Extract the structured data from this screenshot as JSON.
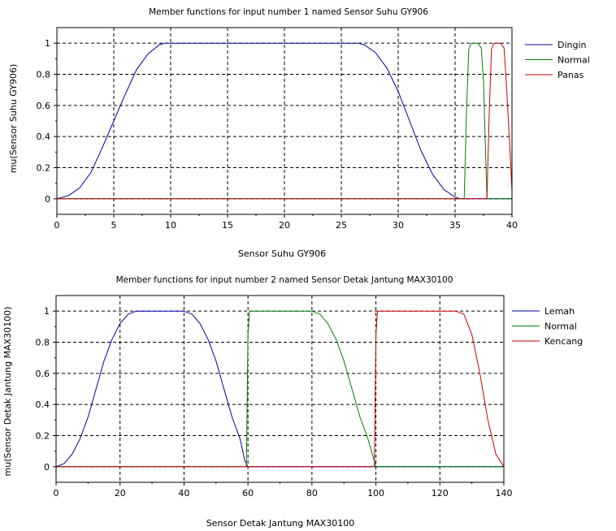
{
  "chart_data": [
    {
      "type": "line",
      "title": "Member functions for input number 1 named Sensor Suhu GY906",
      "xlabel": "Sensor Suhu GY906",
      "ylabel": "mu(Sensor Suhu GY906)",
      "xlim": [
        0,
        40
      ],
      "ylim": [
        -0.1,
        1.1
      ],
      "xticks": [
        0,
        5,
        10,
        15,
        20,
        25,
        30,
        35,
        40
      ],
      "yticks": [
        0,
        0.2,
        0.4,
        0.6,
        0.8,
        1
      ],
      "xtick_labels": [
        "0",
        "5",
        "10",
        "15",
        "20",
        "25",
        "30",
        "35",
        "40"
      ],
      "ytick_labels": [
        "0",
        "0.2",
        "0.4",
        "0.6",
        "0.8",
        "1"
      ],
      "grid": true,
      "legend_position": "right",
      "series": [
        {
          "name": "Dingin",
          "color": "#0000aa",
          "x": [
            0,
            1,
            2,
            3,
            4,
            5,
            6,
            7,
            8,
            9,
            9.5,
            10,
            26,
            26.5,
            27,
            28,
            29,
            30,
            31,
            32,
            33,
            34,
            35,
            35.5,
            36,
            40
          ],
          "y": [
            0,
            0.02,
            0.07,
            0.17,
            0.33,
            0.5,
            0.67,
            0.83,
            0.93,
            0.99,
            1,
            1,
            1,
            1,
            0.99,
            0.94,
            0.84,
            0.69,
            0.5,
            0.31,
            0.16,
            0.06,
            0.01,
            0,
            0,
            0
          ]
        },
        {
          "name": "Normal",
          "color": "#008000",
          "x": [
            0,
            35.8,
            36,
            36.2,
            36.4,
            37,
            37.3,
            37.5,
            37.7,
            37.8,
            40
          ],
          "y": [
            0,
            0,
            0.55,
            0.96,
            1,
            1,
            0.97,
            0.75,
            0.25,
            0,
            0
          ]
        },
        {
          "name": "Panas",
          "color": "#cc0000",
          "x": [
            0,
            37.8,
            38,
            38.2,
            38.4,
            39,
            39.3,
            39.5,
            39.8,
            40
          ],
          "y": [
            0,
            0,
            0.55,
            0.96,
            1,
            1,
            0.97,
            0.75,
            0.35,
            0.05
          ]
        }
      ]
    },
    {
      "type": "line",
      "title": "Member functions for input number 2 named Sensor Detak Jantung MAX30100",
      "xlabel": "Sensor Detak Jantung MAX30100",
      "ylabel": "mu(Sensor Detak Jantung MAX30100)",
      "xlim": [
        0,
        140
      ],
      "ylim": [
        -0.1,
        1.1
      ],
      "xticks": [
        0,
        20,
        40,
        60,
        80,
        100,
        120,
        140
      ],
      "yticks": [
        0,
        0.2,
        0.4,
        0.6,
        0.8,
        1
      ],
      "xtick_labels": [
        "0",
        "20",
        "40",
        "60",
        "80",
        "100",
        "120",
        "140"
      ],
      "ytick_labels": [
        "0",
        "0.2",
        "0.4",
        "0.6",
        "0.8",
        "1"
      ],
      "grid": true,
      "legend_position": "right",
      "series": [
        {
          "name": "Lemah",
          "color": "#0000aa",
          "x": [
            0,
            2.5,
            5,
            7.5,
            10,
            12.5,
            15,
            17.5,
            20,
            22.5,
            25,
            40,
            42.5,
            45,
            47.5,
            50,
            52.5,
            55,
            57.5,
            59,
            60,
            61,
            140
          ],
          "y": [
            0,
            0.02,
            0.08,
            0.18,
            0.32,
            0.5,
            0.68,
            0.82,
            0.92,
            0.98,
            1,
            1,
            0.98,
            0.92,
            0.82,
            0.68,
            0.5,
            0.32,
            0.18,
            0.04,
            0,
            0,
            0
          ]
        },
        {
          "name": "Normal",
          "color": "#008000",
          "x": [
            0,
            59.5,
            60,
            60.5,
            80,
            82.5,
            85,
            87.5,
            90,
            92.5,
            95,
            97.5,
            100,
            140
          ],
          "y": [
            0,
            0,
            0.85,
            1,
            1,
            0.98,
            0.92,
            0.82,
            0.68,
            0.5,
            0.32,
            0.18,
            0,
            0
          ]
        },
        {
          "name": "Kencang",
          "color": "#cc0000",
          "x": [
            0,
            99.5,
            100,
            100.5,
            125,
            127.5,
            130,
            132.5,
            135,
            137.5,
            140
          ],
          "y": [
            0,
            0,
            0.85,
            1,
            1,
            0.98,
            0.85,
            0.6,
            0.3,
            0.08,
            0
          ]
        }
      ]
    }
  ]
}
